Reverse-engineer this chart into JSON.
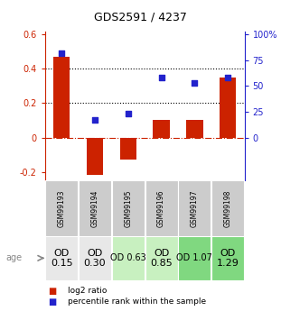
{
  "title": "GDS2591 / 4237",
  "samples": [
    "GSM99193",
    "GSM99194",
    "GSM99195",
    "GSM99196",
    "GSM99197",
    "GSM99198"
  ],
  "log2_ratio": [
    0.47,
    -0.22,
    -0.13,
    0.1,
    0.1,
    0.35
  ],
  "percentile_rank_left": [
    0.49,
    0.1,
    0.14,
    0.35,
    0.32,
    0.35
  ],
  "bar_color": "#cc2200",
  "dot_color": "#2222cc",
  "ylim_left": [
    -0.25,
    0.62
  ],
  "hlines_y": [
    0.0,
    0.2,
    0.4
  ],
  "hline_colors": [
    "#cc2200",
    "black",
    "black"
  ],
  "hline_styles": [
    "dashdot",
    "dotted",
    "dotted"
  ],
  "left_yticks": [
    -0.2,
    0.0,
    0.2,
    0.4,
    0.6
  ],
  "left_yticklabels": [
    "-0.2",
    "0",
    "0.2",
    "0.4",
    "0.6"
  ],
  "right_yticks_pct": [
    0,
    25,
    50,
    75,
    100
  ],
  "right_yticklabels": [
    "0",
    "25",
    "50",
    "75",
    "100%"
  ],
  "background_color": "#ffffff",
  "plot_bg_color": "#ffffff",
  "sample_bg_color": "#cccccc",
  "age_labels": [
    "OD\n0.15",
    "OD\n0.30",
    "OD 0.63",
    "OD\n0.85",
    "OD 1.07",
    "OD\n1.29"
  ],
  "age_bg_colors": [
    "#e8e8e8",
    "#e8e8e8",
    "#c8f0c0",
    "#c8f0c0",
    "#80d880",
    "#80d880"
  ],
  "age_font_sizes": [
    8,
    8,
    7,
    8,
    7,
    8
  ],
  "legend_items": [
    "log2 ratio",
    "percentile rank within the sample"
  ],
  "legend_colors": [
    "#cc2200",
    "#2222cc"
  ]
}
